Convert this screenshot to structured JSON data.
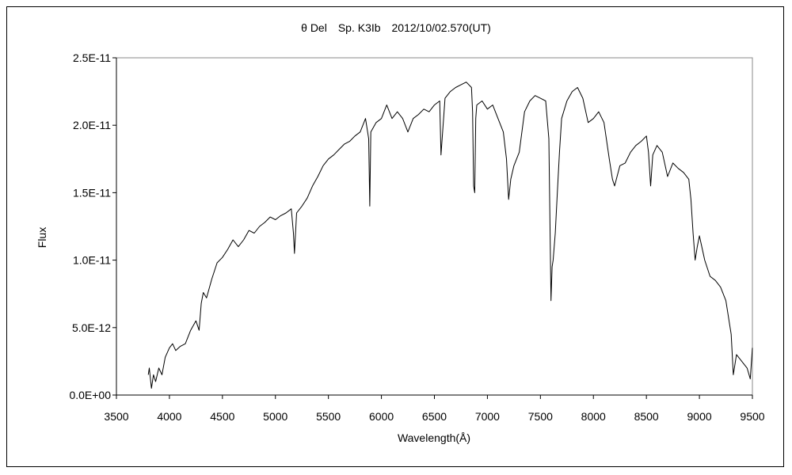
{
  "chart_data": {
    "type": "line",
    "title": "θ Del　Sp. K3Ib　2012/10/02.570(UT)",
    "xlabel": "Wavelength(Å)",
    "ylabel": "Flux",
    "xlim": [
      3500,
      9500
    ],
    "ylim": [
      0,
      2.5e-11
    ],
    "x_ticks": [
      "3500",
      "4000",
      "4500",
      "5000",
      "5500",
      "6000",
      "6500",
      "7000",
      "7500",
      "8000",
      "8500",
      "9000",
      "9500"
    ],
    "y_ticks": [
      "0.0E+00",
      "5.0E-12",
      "1.0E-11",
      "1.5E-11",
      "2.0E-11",
      "2.5E-11"
    ],
    "grid": false,
    "series": [
      {
        "color": "#000000",
        "x": [
          3800,
          3810,
          3830,
          3850,
          3870,
          3900,
          3930,
          3960,
          4000,
          4030,
          4060,
          4100,
          4150,
          4200,
          4250,
          4280,
          4300,
          4320,
          4350,
          4400,
          4450,
          4500,
          4550,
          4600,
          4650,
          4700,
          4750,
          4800,
          4850,
          4900,
          4950,
          5000,
          5050,
          5100,
          5150,
          5170,
          5180,
          5200,
          5250,
          5300,
          5350,
          5400,
          5450,
          5500,
          5550,
          5600,
          5650,
          5700,
          5750,
          5800,
          5850,
          5880,
          5890,
          5900,
          5950,
          6000,
          6050,
          6100,
          6150,
          6200,
          6250,
          6300,
          6350,
          6400,
          6450,
          6500,
          6550,
          6562,
          6600,
          6650,
          6700,
          6750,
          6800,
          6850,
          6860,
          6870,
          6880,
          6890,
          6900,
          6950,
          7000,
          7050,
          7100,
          7150,
          7180,
          7200,
          7220,
          7250,
          7300,
          7350,
          7400,
          7450,
          7500,
          7550,
          7580,
          7600,
          7610,
          7620,
          7640,
          7660,
          7680,
          7700,
          7750,
          7800,
          7850,
          7900,
          7950,
          8000,
          8050,
          8100,
          8150,
          8180,
          8200,
          8250,
          8300,
          8350,
          8400,
          8450,
          8500,
          8520,
          8540,
          8560,
          8600,
          8650,
          8700,
          8750,
          8800,
          8850,
          8900,
          8920,
          8940,
          8960,
          8980,
          9000,
          9050,
          9100,
          9150,
          9200,
          9250,
          9300,
          9320,
          9350,
          9400,
          9450,
          9480,
          9500
        ],
        "y": [
          1.5e-12,
          2e-12,
          5e-13,
          1.5e-12,
          1e-12,
          2e-12,
          1.5e-12,
          2.8e-12,
          3.5e-12,
          3.8e-12,
          3.3e-12,
          3.6e-12,
          3.8e-12,
          4.8e-12,
          5.5e-12,
          4.8e-12,
          6.8e-12,
          7.6e-12,
          7.2e-12,
          8.6e-12,
          9.8e-12,
          1.02e-11,
          1.08e-11,
          1.15e-11,
          1.1e-11,
          1.15e-11,
          1.22e-11,
          1.2e-11,
          1.25e-11,
          1.28e-11,
          1.32e-11,
          1.3e-11,
          1.33e-11,
          1.35e-11,
          1.38e-11,
          1.2e-11,
          1.05e-11,
          1.35e-11,
          1.4e-11,
          1.46e-11,
          1.55e-11,
          1.62e-11,
          1.7e-11,
          1.75e-11,
          1.78e-11,
          1.82e-11,
          1.86e-11,
          1.88e-11,
          1.92e-11,
          1.95e-11,
          2.05e-11,
          1.9e-11,
          1.4e-11,
          1.95e-11,
          2.02e-11,
          2.05e-11,
          2.15e-11,
          2.05e-11,
          2.1e-11,
          2.05e-11,
          1.95e-11,
          2.05e-11,
          2.08e-11,
          2.12e-11,
          2.1e-11,
          2.15e-11,
          2.18e-11,
          1.78e-11,
          2.2e-11,
          2.25e-11,
          2.28e-11,
          2.3e-11,
          2.32e-11,
          2.28e-11,
          2.1e-11,
          1.55e-11,
          1.5e-11,
          2.05e-11,
          2.15e-11,
          2.18e-11,
          2.12e-11,
          2.15e-11,
          2.05e-11,
          1.95e-11,
          1.75e-11,
          1.45e-11,
          1.6e-11,
          1.7e-11,
          1.8e-11,
          2.1e-11,
          2.18e-11,
          2.22e-11,
          2.2e-11,
          2.18e-11,
          1.9e-11,
          7e-12,
          9.5e-12,
          1e-11,
          1.2e-11,
          1.5e-11,
          1.8e-11,
          2.05e-11,
          2.18e-11,
          2.25e-11,
          2.28e-11,
          2.2e-11,
          2.02e-11,
          2.05e-11,
          2.1e-11,
          2.02e-11,
          1.75e-11,
          1.6e-11,
          1.55e-11,
          1.7e-11,
          1.72e-11,
          1.8e-11,
          1.85e-11,
          1.88e-11,
          1.92e-11,
          1.8e-11,
          1.55e-11,
          1.78e-11,
          1.85e-11,
          1.8e-11,
          1.62e-11,
          1.72e-11,
          1.68e-11,
          1.65e-11,
          1.6e-11,
          1.45e-11,
          1.2e-11,
          1e-11,
          1.1e-11,
          1.18e-11,
          1e-11,
          8.8e-12,
          8.5e-12,
          8e-12,
          7e-12,
          4.5e-12,
          1.5e-12,
          3e-12,
          2.5e-12,
          2e-12,
          1.2e-12,
          3.5e-12
        ]
      }
    ]
  }
}
